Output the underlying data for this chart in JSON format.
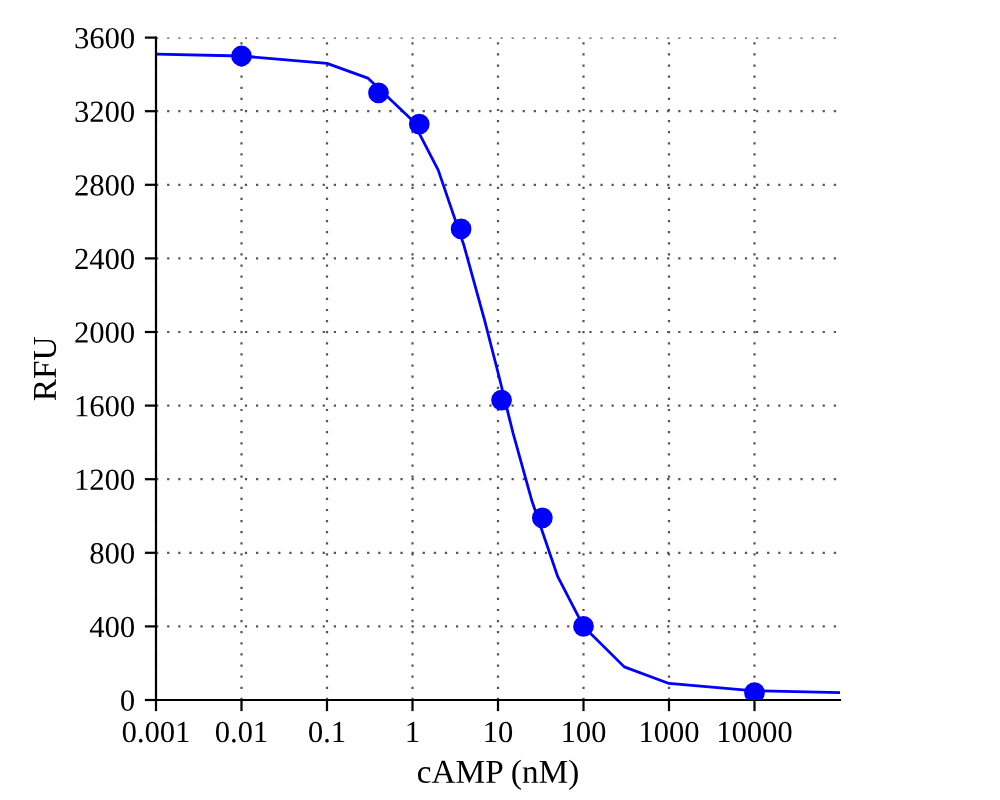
{
  "chart_data": {
    "type": "scatter",
    "xlabel": "cAMP (nM)",
    "ylabel": "RFU",
    "log": "x",
    "grid": true,
    "marker": "circle",
    "xlim": [
      0.001,
      100000
    ],
    "xticks": [
      {
        "value": 0.001,
        "label": "0.001"
      },
      {
        "value": 0.01,
        "label": "0.01"
      },
      {
        "value": 0.1,
        "label": "0.1"
      },
      1,
      10,
      100,
      1000,
      10000
    ],
    "ylim": [
      0,
      3600
    ],
    "yticks": [
      0,
      400,
      800,
      1200,
      1600,
      2000,
      2400,
      2800,
      3200,
      3600
    ],
    "x": [
      0.01,
      0.4,
      1.2,
      3.7,
      11,
      33,
      100,
      10000
    ],
    "series": [
      {
        "color": "#0000ff",
        "values": [
          3500,
          3300,
          3130,
          2560,
          1630,
          990,
          400,
          40
        ]
      },
      {
        "type": "line",
        "color": "#0000ff",
        "marker": "none",
        "x": [
          0.001,
          0.01,
          0.1,
          0.3,
          1,
          2,
          4,
          7,
          10,
          15,
          25,
          50,
          100,
          300,
          1000,
          10000,
          100000
        ],
        "values": [
          3510,
          3500,
          3460,
          3380,
          3150,
          2880,
          2470,
          2060,
          1780,
          1450,
          1080,
          670,
          400,
          180,
          90,
          50,
          40
        ]
      }
    ]
  }
}
